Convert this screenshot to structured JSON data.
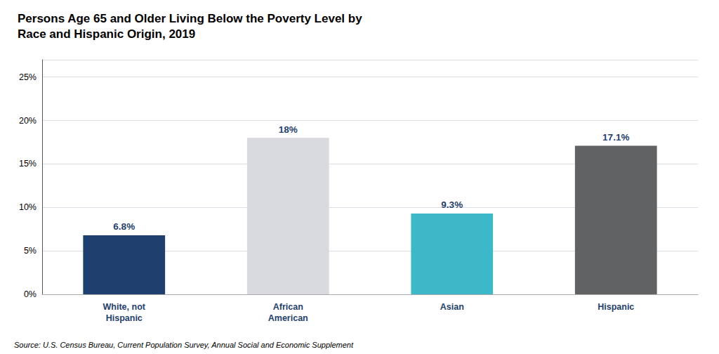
{
  "chart_data": {
    "type": "bar",
    "title": "Persons Age 65 and Older Living Below the Poverty Level by\nRace and Hispanic Origin, 2019",
    "categories": [
      "White, not\nHispanic",
      "African\nAmerican",
      "Asian",
      "Hispanic"
    ],
    "values": [
      6.8,
      18.0,
      9.3,
      17.1
    ],
    "value_labels": [
      "6.8%",
      "18%",
      "9.3%",
      "17.1%"
    ],
    "colors": [
      "#1F3F6E",
      "#D8DADD",
      "#3CB8C8",
      "#606264"
    ],
    "data_labels": true,
    "ylim": [
      0,
      27
    ],
    "yticks": [
      {
        "value": 0,
        "label": "0%"
      },
      {
        "value": 5,
        "label": "5%"
      },
      {
        "value": 10,
        "label": "10%"
      },
      {
        "value": 15,
        "label": "15%"
      },
      {
        "value": 20,
        "label": "20%"
      },
      {
        "value": 25,
        "label": "25%"
      }
    ],
    "grid": true,
    "annotations": [
      "Source: U.S. Census Bureau, Current Population Survey, Annual Social and Economic Supplement"
    ]
  }
}
